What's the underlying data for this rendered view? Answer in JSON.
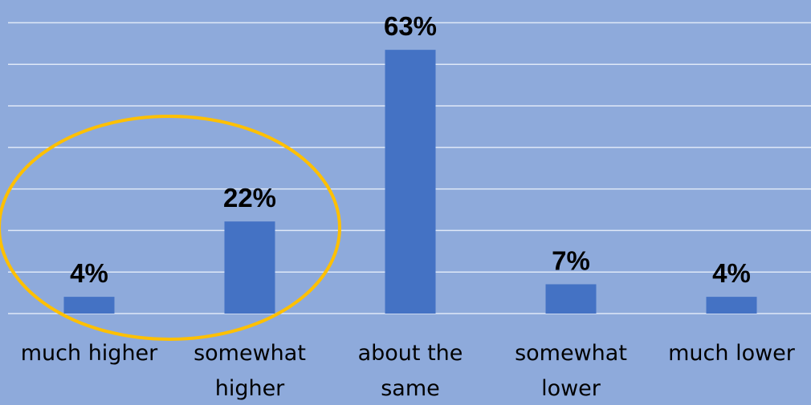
{
  "chart_data": {
    "type": "bar",
    "title": "",
    "xlabel": "",
    "ylabel": "",
    "categories": [
      [
        "much higher"
      ],
      [
        "somewhat",
        "higher"
      ],
      [
        "about the",
        "same"
      ],
      [
        "somewhat",
        "lower"
      ],
      [
        "much lower"
      ]
    ],
    "values": [
      4,
      22,
      63,
      7,
      4
    ],
    "data_labels": [
      "4%",
      "22%",
      "63%",
      "7%",
      "4%"
    ],
    "value_unit": "%",
    "ylim": [
      0,
      70
    ],
    "grid": true,
    "legend": "none",
    "annotation": {
      "shape": "ellipse",
      "highlights": [
        "much higher",
        "somewhat higher"
      ],
      "color": "#ffc000"
    }
  },
  "colors": {
    "background": "#8eaadb",
    "bar": "#4472c4",
    "gridline": "#dfe8f7",
    "label": "#000000",
    "highlight": "#ffc000"
  }
}
